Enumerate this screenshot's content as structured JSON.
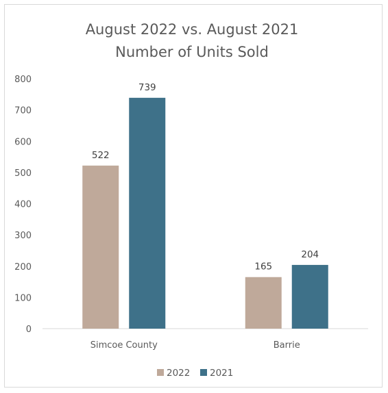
{
  "chart_data": {
    "type": "bar",
    "title": "August 2022 vs. August 2021",
    "subtitle": "Number of Units Sold",
    "categories": [
      "Simcoe County",
      "Barrie"
    ],
    "series": [
      {
        "name": "2022",
        "values": [
          522,
          165
        ],
        "color": "#bfa99a"
      },
      {
        "name": "2021",
        "values": [
          739,
          204
        ],
        "color": "#3e7189"
      }
    ],
    "xlabel": "",
    "ylabel": "",
    "ylim": [
      0,
      800
    ],
    "yticks": [
      0,
      100,
      200,
      300,
      400,
      500,
      600,
      700,
      800
    ],
    "grid": false,
    "data_labels": true,
    "legend_position": "bottom"
  }
}
